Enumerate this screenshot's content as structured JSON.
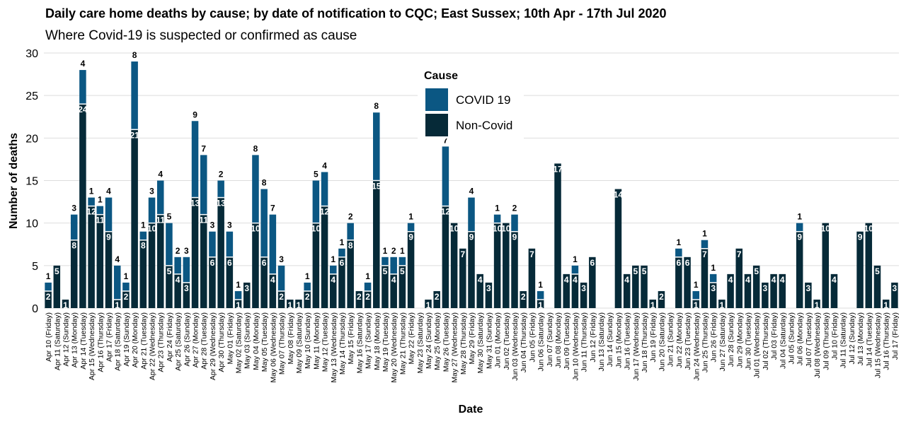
{
  "colors": {
    "covid": "#0b5783",
    "non_covid": "#062a38",
    "grid": "#dddddd",
    "text": "#000000"
  },
  "chart_data": {
    "type": "bar",
    "stacked": true,
    "title": "Daily care home deaths by cause; by date of notification to CQC; East Sussex; 10th Apr - 17th Jul 2020",
    "subtitle": "Where Covid-19 is suspected or confirmed as cause",
    "xlabel": "Date",
    "ylabel": "Number of deaths",
    "ylim": [
      0,
      30
    ],
    "yticks": [
      0,
      5,
      10,
      15,
      20,
      25,
      30
    ],
    "grid": true,
    "legend": {
      "title": "Cause",
      "position": "top-center",
      "entries": [
        "COVID 19",
        "Non-Covid"
      ]
    },
    "categories": [
      "Apr 10 (Friday)",
      "Apr 11 (Saturday)",
      "Apr 12 (Sunday)",
      "Apr 13 (Monday)",
      "Apr 14 (Tuesday)",
      "Apr 15 (Wednesday)",
      "Apr 16 (Thursday)",
      "Apr 17 (Friday)",
      "Apr 18 (Saturday)",
      "Apr 19 (Sunday)",
      "Apr 20 (Monday)",
      "Apr 21 (Tuesday)",
      "Apr 22 (Wednesday)",
      "Apr 23 (Thursday)",
      "Apr 24 (Friday)",
      "Apr 25 (Saturday)",
      "Apr 26 (Sunday)",
      "Apr 27 (Monday)",
      "Apr 28 (Tuesday)",
      "Apr 29 (Wednesday)",
      "Apr 30 (Thursday)",
      "May 01 (Friday)",
      "May 02 (Saturday)",
      "May 03 (Sunday)",
      "May 04 (Monday)",
      "May 05 (Tuesday)",
      "May 06 (Wednesday)",
      "May 07 (Thursday)",
      "May 08 (Friday)",
      "May 09 (Saturday)",
      "May 10 (Sunday)",
      "May 11 (Monday)",
      "May 12 (Tuesday)",
      "May 13 (Wednesday)",
      "May 14 (Thursday)",
      "May 15 (Friday)",
      "May 16 (Saturday)",
      "May 17 (Sunday)",
      "May 18 (Monday)",
      "May 19 (Tuesday)",
      "May 20 (Wednesday)",
      "May 21 (Thursday)",
      "May 22 (Friday)",
      "May 23 (Saturday)",
      "May 24 (Sunday)",
      "May 25 (Monday)",
      "May 26 (Tuesday)",
      "May 27 (Wednesday)",
      "May 28 (Thursday)",
      "May 29 (Friday)",
      "May 30 (Saturday)",
      "May 31 (Sunday)",
      "Jun 01 (Monday)",
      "Jun 02 (Tuesday)",
      "Jun 03 (Wednesday)",
      "Jun 04 (Thursday)",
      "Jun 05 (Friday)",
      "Jun 06 (Saturday)",
      "Jun 07 (Sunday)",
      "Jun 08 (Monday)",
      "Jun 09 (Tuesday)",
      "Jun 10 (Wednesday)",
      "Jun 11 (Thursday)",
      "Jun 12 (Friday)",
      "Jun 13 (Saturday)",
      "Jun 14 (Sunday)",
      "Jun 15 (Monday)",
      "Jun 16 (Tuesday)",
      "Jun 17 (Wednesday)",
      "Jun 18 (Thursday)",
      "Jun 19 (Friday)",
      "Jun 20 (Saturday)",
      "Jun 21 (Sunday)",
      "Jun 22 (Monday)",
      "Jun 23 (Tuesday)",
      "Jun 24 (Wednesday)",
      "Jun 25 (Thursday)",
      "Jun 26 (Friday)",
      "Jun 27 (Saturday)",
      "Jun 28 (Sunday)",
      "Jun 29 (Monday)",
      "Jun 30 (Tuesday)",
      "Jul 01 (Wednesday)",
      "Jul 02 (Thursday)",
      "Jul 03 (Friday)",
      "Jul 04 (Saturday)",
      "Jul 05 (Sunday)",
      "Jul 06 (Monday)",
      "Jul 07 (Tuesday)",
      "Jul 08 (Wednesday)",
      "Jul 09 (Thursday)",
      "Jul 10 (Friday)",
      "Jul 11 (Saturday)",
      "Jul 12 (Sunday)",
      "Jul 13 (Monday)",
      "Jul 14 (Tuesday)",
      "Jul 15 (Wednesday)",
      "Jul 16 (Thursday)",
      "Jul 17 (Friday)"
    ],
    "series": [
      {
        "name": "Non-Covid",
        "values": [
          2,
          5,
          1,
          8,
          24,
          12,
          11,
          9,
          1,
          2,
          21,
          8,
          10,
          11,
          5,
          4,
          3,
          13,
          11,
          6,
          13,
          6,
          1,
          3,
          10,
          6,
          4,
          2,
          1,
          1,
          2,
          10,
          12,
          4,
          6,
          8,
          2,
          2,
          15,
          5,
          4,
          5,
          9,
          0,
          1,
          2,
          12,
          10,
          7,
          9,
          4,
          3,
          10,
          10,
          9,
          2,
          7,
          1,
          0,
          17,
          4,
          4,
          3,
          6,
          0,
          0,
          14,
          4,
          5,
          5,
          1,
          2,
          0,
          6,
          6,
          1,
          7,
          3,
          1,
          4,
          7,
          4,
          5,
          3,
          4,
          4,
          0,
          9,
          3,
          1,
          10,
          4,
          0,
          0,
          9,
          10,
          5,
          1,
          3
        ]
      },
      {
        "name": "COVID 19",
        "values": [
          1,
          0,
          0,
          3,
          4,
          1,
          1,
          4,
          4,
          1,
          8,
          1,
          3,
          4,
          5,
          2,
          3,
          9,
          7,
          3,
          2,
          3,
          1,
          0,
          8,
          8,
          7,
          3,
          0,
          0,
          1,
          5,
          4,
          1,
          1,
          2,
          0,
          1,
          8,
          1,
          2,
          1,
          1,
          0,
          0,
          0,
          7,
          0,
          0,
          4,
          0,
          0,
          1,
          0,
          2,
          0,
          0,
          1,
          0,
          0,
          0,
          1,
          0,
          0,
          0,
          0,
          0,
          0,
          0,
          0,
          0,
          0,
          0,
          1,
          0,
          1,
          1,
          1,
          0,
          0,
          0,
          0,
          0,
          0,
          0,
          0,
          0,
          1,
          0,
          0,
          0,
          0,
          0,
          0,
          0,
          0,
          0,
          0,
          0
        ]
      }
    ]
  }
}
